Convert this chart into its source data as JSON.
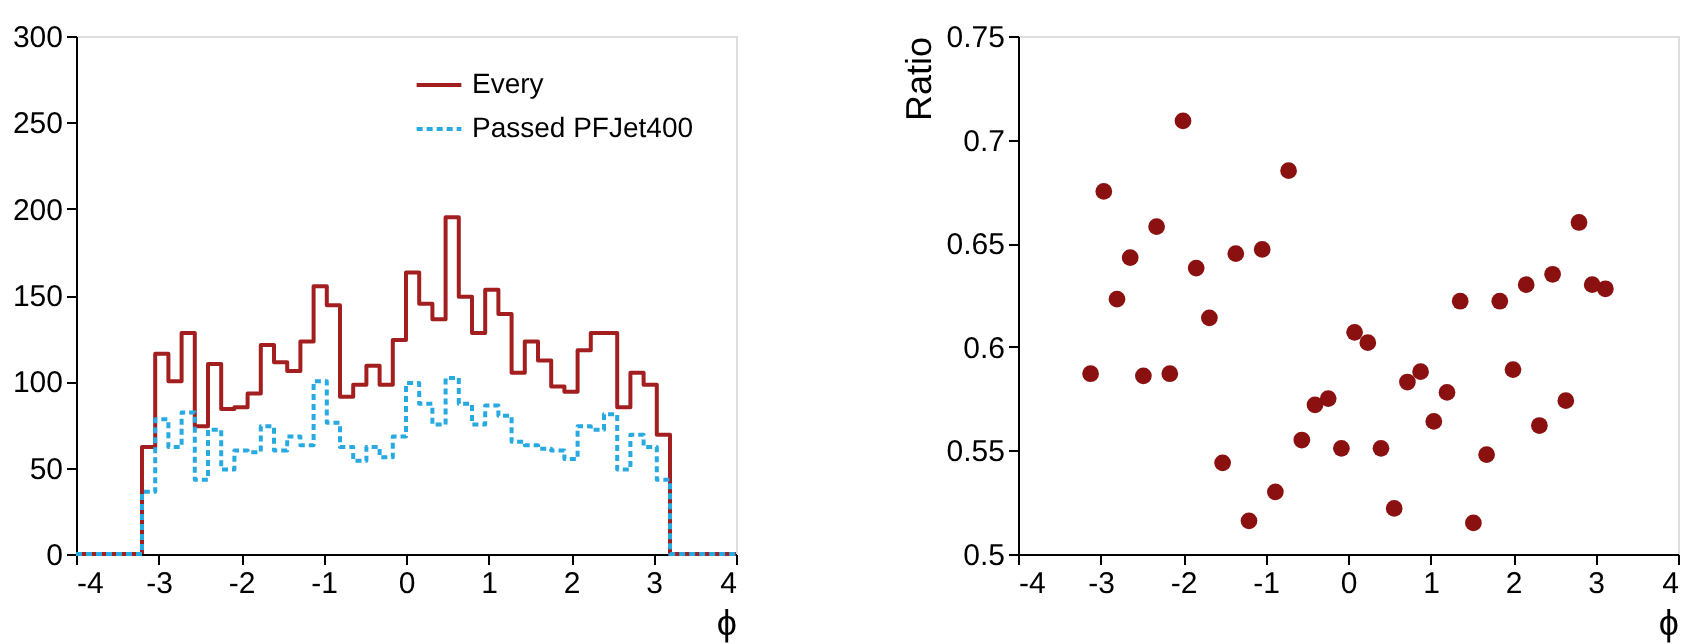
{
  "chart_data": [
    {
      "type": "histogram",
      "xlabel": "ϕ",
      "bins": [
        -4,
        -3.84,
        -3.68,
        -3.52,
        -3.36,
        -3.2,
        -3.04,
        -2.88,
        -2.72,
        -2.56,
        -2.4,
        -2.24,
        -2.08,
        -1.92,
        -1.76,
        -1.6,
        -1.44,
        -1.28,
        -1.12,
        -0.96,
        -0.8,
        -0.64,
        -0.48,
        -0.32,
        -0.16,
        0,
        0.16,
        0.32,
        0.48,
        0.64,
        0.8,
        0.96,
        1.12,
        1.28,
        1.44,
        1.6,
        1.76,
        1.92,
        2.08,
        2.24,
        2.4,
        2.56,
        2.72,
        2.88,
        3.04,
        3.2,
        3.36,
        3.52,
        3.68,
        3.84,
        4
      ],
      "series": [
        {
          "name": "Every",
          "color": "#a31f1f",
          "line_style": "solid",
          "values": [
            0,
            0,
            0,
            0,
            0,
            62,
            116,
            100,
            128,
            74,
            110,
            84,
            85,
            93,
            121,
            111,
            106,
            123,
            155,
            144,
            91,
            98,
            109,
            98,
            124,
            163,
            145,
            136,
            195,
            149,
            128,
            153,
            139,
            105,
            123,
            112,
            97,
            94,
            118,
            128,
            128,
            85,
            105,
            98,
            69,
            0,
            0,
            0,
            0,
            0
          ]
        },
        {
          "name": "Passed PFJet400",
          "color": "#27a9e1",
          "line_style": "dashed",
          "values": [
            0,
            0,
            0,
            0,
            0,
            36,
            78,
            62,
            82,
            43,
            72,
            49,
            60,
            59,
            74,
            60,
            68,
            63,
            100,
            76,
            62,
            54,
            62,
            56,
            68,
            99,
            87,
            75,
            102,
            87,
            75,
            86,
            80,
            65,
            63,
            61,
            60,
            55,
            74,
            72,
            81,
            49,
            69,
            62,
            43,
            0,
            0,
            0,
            0,
            0
          ]
        }
      ],
      "xlim": [
        -4,
        4
      ],
      "xticks": [
        -4,
        -3,
        -2,
        -1,
        0,
        1,
        2,
        3,
        4
      ],
      "ylim": [
        0,
        300
      ],
      "yticks": [
        0,
        50,
        100,
        150,
        200,
        250,
        300
      ],
      "grid": false,
      "legend": "top right"
    },
    {
      "type": "scatter",
      "xlabel": "ϕ",
      "ylabel": "Ratio",
      "marker": "circle",
      "x": [
        -3.12,
        -2.96,
        -2.8,
        -2.64,
        -2.48,
        -2.32,
        -2.16,
        -2.0,
        -1.84,
        -1.68,
        -1.52,
        -1.36,
        -1.2,
        -1.04,
        -0.88,
        -0.72,
        -0.56,
        -0.4,
        -0.24,
        -0.08,
        0.08,
        0.24,
        0.4,
        0.56,
        0.72,
        0.88,
        1.04,
        1.2,
        1.36,
        1.52,
        1.68,
        1.84,
        2.0,
        2.16,
        2.32,
        2.48,
        2.64,
        2.8,
        2.96,
        3.12
      ],
      "series": [
        {
          "color": "#8b1010",
          "values": [
            0.587,
            0.675,
            0.623,
            0.643,
            0.586,
            0.658,
            0.587,
            0.709,
            0.638,
            0.614,
            0.544,
            0.645,
            0.516,
            0.647,
            0.53,
            0.685,
            0.555,
            0.572,
            0.575,
            0.551,
            0.607,
            0.602,
            0.551,
            0.522,
            0.583,
            0.588,
            0.564,
            0.578,
            0.622,
            0.515,
            0.548,
            0.622,
            0.589,
            0.63,
            0.562,
            0.635,
            0.574,
            0.66,
            0.63,
            0.628
          ]
        }
      ],
      "xlim": [
        -4,
        4
      ],
      "xticks": [
        -4,
        -3,
        -2,
        -1,
        0,
        1,
        2,
        3,
        4
      ],
      "ylim": [
        0.5,
        0.75
      ],
      "yticks": [
        0.5,
        0.55,
        0.6,
        0.65,
        0.7,
        0.75
      ],
      "grid": false,
      "legend": false
    }
  ]
}
